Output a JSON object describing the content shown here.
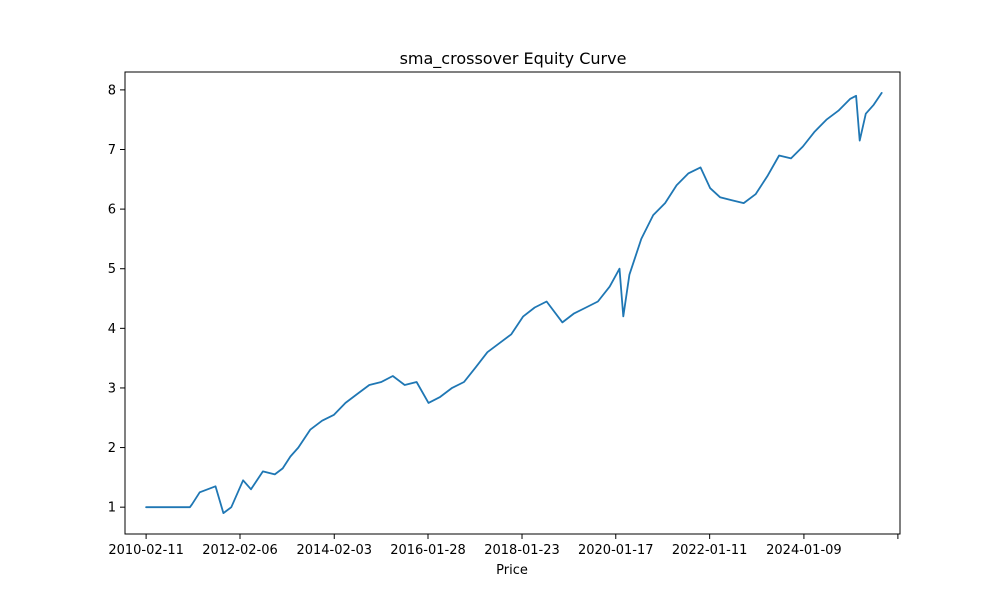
{
  "chart_data": {
    "type": "line",
    "title": "sma_crossover Equity Curve",
    "xlabel": "Price",
    "ylabel": "",
    "grid": false,
    "legend": "none",
    "x_ticks": [
      "2010-02-11",
      "2012-02-06",
      "2014-02-03",
      "2016-01-28",
      "2018-01-23",
      "2020-01-17",
      "2022-01-11",
      "2024-01-09",
      ""
    ],
    "y_ticks": [
      "1",
      "2",
      "3",
      "4",
      "5",
      "6",
      "7",
      "8"
    ],
    "xlim": [
      "2009-09-01",
      "2026-01-20"
    ],
    "ylim": [
      0.55,
      8.3
    ],
    "series": [
      {
        "name": "",
        "color": "#1f77b4",
        "x": [
          "2010-02-11",
          "2010-08-01",
          "2011-01-15",
          "2011-02-01",
          "2011-04-01",
          "2011-06-01",
          "2011-08-01",
          "2011-10-01",
          "2011-12-01",
          "2012-03-01",
          "2012-05-01",
          "2012-08-01",
          "2012-11-01",
          "2013-01-01",
          "2013-03-01",
          "2013-05-01",
          "2013-08-01",
          "2013-11-01",
          "2014-02-01",
          "2014-05-01",
          "2014-08-01",
          "2014-11-01",
          "2015-02-01",
          "2015-05-01",
          "2015-08-01",
          "2015-11-01",
          "2016-02-01",
          "2016-05-01",
          "2016-08-01",
          "2016-11-01",
          "2017-02-01",
          "2017-05-01",
          "2017-08-01",
          "2017-11-01",
          "2018-02-01",
          "2018-05-01",
          "2018-08-01",
          "2018-12-01",
          "2019-03-01",
          "2019-06-01",
          "2019-09-01",
          "2019-12-01",
          "2020-02-15",
          "2020-03-15",
          "2020-05-01",
          "2020-08-01",
          "2020-11-01",
          "2021-02-01",
          "2021-05-01",
          "2021-08-01",
          "2021-11-01",
          "2022-01-15",
          "2022-04-01",
          "2022-07-01",
          "2022-10-01",
          "2023-01-01",
          "2023-04-01",
          "2023-07-01",
          "2023-10-01",
          "2024-01-01",
          "2024-04-01",
          "2024-07-01",
          "2024-10-01",
          "2025-01-01",
          "2025-02-15",
          "2025-03-15",
          "2025-05-01",
          "2025-07-01",
          "2025-09-01"
        ],
        "values": [
          1.0,
          1.0,
          1.0,
          1.05,
          1.25,
          1.3,
          1.35,
          0.9,
          1.0,
          1.45,
          1.3,
          1.6,
          1.55,
          1.65,
          1.85,
          2.0,
          2.3,
          2.45,
          2.55,
          2.75,
          2.9,
          3.05,
          3.1,
          3.2,
          3.05,
          3.1,
          2.75,
          2.85,
          3.0,
          3.1,
          3.35,
          3.6,
          3.75,
          3.9,
          4.2,
          4.35,
          4.45,
          4.1,
          4.25,
          4.35,
          4.45,
          4.7,
          5.0,
          4.2,
          4.9,
          5.5,
          5.9,
          6.1,
          6.4,
          6.6,
          6.7,
          6.35,
          6.2,
          6.15,
          6.1,
          6.25,
          6.55,
          6.9,
          6.85,
          7.05,
          7.3,
          7.5,
          7.65,
          7.85,
          7.9,
          7.15,
          7.6,
          7.75,
          7.95
        ]
      }
    ]
  }
}
